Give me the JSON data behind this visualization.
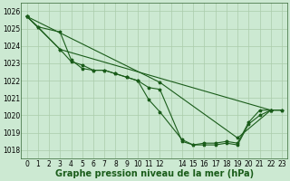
{
  "title": "Graphe pression niveau de la mer (hPa)",
  "background_color": "#cce9d2",
  "grid_color": "#aaccaa",
  "line_color": "#1a5c1a",
  "xlim": [
    -0.5,
    23.5
  ],
  "ylim": [
    1017.5,
    1026.5
  ],
  "yticks": [
    1018,
    1019,
    1020,
    1021,
    1022,
    1023,
    1024,
    1025,
    1026
  ],
  "line_xvals": [
    [
      0,
      1,
      3,
      4,
      5,
      6,
      7,
      8,
      9,
      10,
      11,
      12,
      14,
      15,
      16,
      17,
      18,
      19,
      20,
      21,
      22,
      23
    ],
    [
      0,
      1,
      3,
      4,
      5,
      6,
      7,
      8,
      9,
      10,
      11,
      12,
      14,
      15,
      16,
      17,
      18,
      19,
      20,
      21,
      22,
      23
    ],
    [
      0,
      3,
      22
    ],
    [
      0,
      12,
      19,
      22
    ]
  ],
  "line_yvals": [
    [
      1025.7,
      1025.1,
      1024.8,
      1023.2,
      1022.7,
      1022.6,
      1022.6,
      1022.4,
      1022.2,
      1022.0,
      1021.6,
      1021.5,
      1018.5,
      1018.3,
      1018.3,
      1018.3,
      1018.4,
      1018.3,
      1019.5,
      1020.0,
      1020.3,
      1020.3
    ],
    [
      1025.7,
      1025.1,
      1023.8,
      1023.1,
      1022.9,
      1022.6,
      1022.6,
      1022.4,
      1022.2,
      1022.0,
      1020.9,
      1020.2,
      1018.6,
      1018.3,
      1018.4,
      1018.4,
      1018.5,
      1018.4,
      1019.6,
      1020.3,
      1020.3,
      1020.3
    ],
    [
      1025.7,
      1023.8,
      1020.3
    ],
    [
      1025.7,
      1021.9,
      1018.7,
      1020.3
    ]
  ],
  "xtick_positions": [
    0,
    1,
    2,
    3,
    4,
    5,
    6,
    7,
    8,
    9,
    10,
    11,
    12,
    14,
    15,
    16,
    17,
    18,
    19,
    20,
    21,
    22,
    23
  ],
  "xtick_labels": [
    "0",
    "1",
    "2",
    "3",
    "4",
    "5",
    "6",
    "7",
    "8",
    "9",
    "10",
    "11",
    "12",
    "14",
    "15",
    "16",
    "17",
    "18",
    "19",
    "20",
    "21",
    "22",
    "23"
  ],
  "tick_fontsize": 5.5,
  "label_fontsize": 7.0,
  "marker_size": 2.5,
  "line_width": 0.8
}
